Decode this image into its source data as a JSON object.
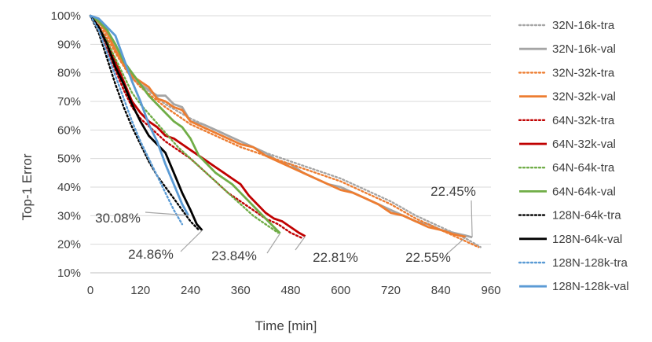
{
  "chart_data": {
    "type": "line",
    "xlabel": "Time [min]",
    "ylabel": "Top-1 Error",
    "xlim": [
      0,
      960
    ],
    "ylim": [
      10,
      100
    ],
    "xticks": [
      0,
      120,
      240,
      360,
      480,
      600,
      720,
      840,
      960
    ],
    "yticks": [
      10,
      20,
      30,
      40,
      50,
      60,
      70,
      80,
      90,
      100
    ],
    "ytick_suffix": "%",
    "grid": true,
    "legend_position": "right",
    "series": [
      {
        "name": "32N-16k-tra",
        "color": "#a5a5a5",
        "style": "dotted",
        "points": [
          [
            0,
            100
          ],
          [
            30,
            96
          ],
          [
            60,
            89
          ],
          [
            90,
            82
          ],
          [
            120,
            76
          ],
          [
            180,
            69
          ],
          [
            240,
            64
          ],
          [
            300,
            60
          ],
          [
            360,
            56
          ],
          [
            420,
            52
          ],
          [
            480,
            49
          ],
          [
            540,
            46
          ],
          [
            600,
            43
          ],
          [
            660,
            39
          ],
          [
            720,
            35
          ],
          [
            780,
            30
          ],
          [
            840,
            26
          ],
          [
            900,
            22
          ],
          [
            935,
            19
          ]
        ]
      },
      {
        "name": "32N-16k-val",
        "color": "#a5a5a5",
        "style": "solid",
        "points": [
          [
            0,
            100
          ],
          [
            20,
            98
          ],
          [
            40,
            95
          ],
          [
            60,
            89
          ],
          [
            80,
            83
          ],
          [
            100,
            78
          ],
          [
            120,
            76
          ],
          [
            140,
            74
          ],
          [
            160,
            72
          ],
          [
            180,
            72
          ],
          [
            200,
            69
          ],
          [
            220,
            68
          ],
          [
            240,
            63
          ],
          [
            270,
            62
          ],
          [
            300,
            60
          ],
          [
            330,
            58
          ],
          [
            360,
            56
          ],
          [
            390,
            54
          ],
          [
            420,
            52
          ],
          [
            450,
            49
          ],
          [
            480,
            48
          ],
          [
            510,
            45
          ],
          [
            540,
            43
          ],
          [
            570,
            41
          ],
          [
            600,
            40
          ],
          [
            630,
            38
          ],
          [
            660,
            36
          ],
          [
            690,
            34
          ],
          [
            720,
            32
          ],
          [
            750,
            30
          ],
          [
            780,
            28
          ],
          [
            810,
            27
          ],
          [
            840,
            25
          ],
          [
            870,
            24
          ],
          [
            900,
            23
          ],
          [
            915,
            22.45
          ]
        ]
      },
      {
        "name": "32N-32k-tra",
        "color": "#ed7d31",
        "style": "dotted",
        "points": [
          [
            0,
            100
          ],
          [
            30,
            95
          ],
          [
            60,
            87
          ],
          [
            90,
            80
          ],
          [
            120,
            75
          ],
          [
            180,
            68
          ],
          [
            240,
            62
          ],
          [
            300,
            58
          ],
          [
            360,
            54
          ],
          [
            420,
            51
          ],
          [
            480,
            48
          ],
          [
            540,
            45
          ],
          [
            600,
            42
          ],
          [
            660,
            38
          ],
          [
            720,
            34
          ],
          [
            780,
            29
          ],
          [
            840,
            25
          ],
          [
            900,
            21
          ],
          [
            930,
            19
          ]
        ]
      },
      {
        "name": "32N-32k-val",
        "color": "#ed7d31",
        "style": "solid",
        "points": [
          [
            0,
            100
          ],
          [
            20,
            98
          ],
          [
            40,
            94
          ],
          [
            60,
            88
          ],
          [
            80,
            83
          ],
          [
            100,
            79
          ],
          [
            120,
            77
          ],
          [
            140,
            75
          ],
          [
            160,
            71
          ],
          [
            180,
            70
          ],
          [
            200,
            68
          ],
          [
            220,
            67
          ],
          [
            240,
            63
          ],
          [
            270,
            61
          ],
          [
            300,
            59
          ],
          [
            330,
            57
          ],
          [
            360,
            55
          ],
          [
            390,
            54
          ],
          [
            420,
            51
          ],
          [
            450,
            49
          ],
          [
            480,
            47
          ],
          [
            510,
            45
          ],
          [
            540,
            43
          ],
          [
            570,
            41
          ],
          [
            600,
            39
          ],
          [
            630,
            38
          ],
          [
            660,
            36
          ],
          [
            690,
            34
          ],
          [
            720,
            31
          ],
          [
            750,
            30
          ],
          [
            780,
            28
          ],
          [
            810,
            26
          ],
          [
            840,
            25
          ],
          [
            870,
            23.5
          ],
          [
            900,
            22.55
          ]
        ]
      },
      {
        "name": "64N-32k-tra",
        "color": "#c00000",
        "style": "dotted",
        "points": [
          [
            0,
            100
          ],
          [
            20,
            95
          ],
          [
            40,
            88
          ],
          [
            60,
            81
          ],
          [
            80,
            74
          ],
          [
            100,
            68
          ],
          [
            120,
            64
          ],
          [
            150,
            60
          ],
          [
            180,
            56
          ],
          [
            210,
            53
          ],
          [
            240,
            50
          ],
          [
            270,
            46
          ],
          [
            300,
            42
          ],
          [
            330,
            38
          ],
          [
            360,
            35
          ],
          [
            390,
            32
          ],
          [
            420,
            29
          ],
          [
            450,
            27
          ],
          [
            480,
            24
          ],
          [
            510,
            22
          ]
        ]
      },
      {
        "name": "64N-32k-val",
        "color": "#c00000",
        "style": "solid",
        "points": [
          [
            0,
            100
          ],
          [
            20,
            96
          ],
          [
            40,
            91
          ],
          [
            60,
            84
          ],
          [
            80,
            77
          ],
          [
            100,
            70
          ],
          [
            120,
            66
          ],
          [
            140,
            63
          ],
          [
            160,
            61
          ],
          [
            180,
            58
          ],
          [
            200,
            57
          ],
          [
            220,
            55
          ],
          [
            240,
            53
          ],
          [
            260,
            51
          ],
          [
            280,
            49
          ],
          [
            300,
            47
          ],
          [
            320,
            45
          ],
          [
            340,
            43
          ],
          [
            360,
            41
          ],
          [
            380,
            37
          ],
          [
            400,
            34
          ],
          [
            420,
            31
          ],
          [
            440,
            29
          ],
          [
            460,
            28
          ],
          [
            480,
            26
          ],
          [
            500,
            24
          ],
          [
            515,
            22.81
          ]
        ]
      },
      {
        "name": "64N-64k-tra",
        "color": "#70ad47",
        "style": "dotted",
        "points": [
          [
            0,
            100
          ],
          [
            20,
            96
          ],
          [
            40,
            91
          ],
          [
            60,
            85
          ],
          [
            80,
            79
          ],
          [
            100,
            73
          ],
          [
            120,
            69
          ],
          [
            150,
            64
          ],
          [
            180,
            59
          ],
          [
            210,
            54
          ],
          [
            240,
            50
          ],
          [
            270,
            46
          ],
          [
            300,
            42
          ],
          [
            330,
            38
          ],
          [
            360,
            34
          ],
          [
            390,
            30
          ],
          [
            420,
            27
          ],
          [
            450,
            24
          ]
        ]
      },
      {
        "name": "64N-64k-val",
        "color": "#70ad47",
        "style": "solid",
        "points": [
          [
            0,
            100
          ],
          [
            20,
            98
          ],
          [
            40,
            95
          ],
          [
            60,
            90
          ],
          [
            80,
            84
          ],
          [
            100,
            80
          ],
          [
            120,
            76
          ],
          [
            140,
            72
          ],
          [
            160,
            69
          ],
          [
            180,
            66
          ],
          [
            200,
            63
          ],
          [
            220,
            61
          ],
          [
            240,
            57
          ],
          [
            260,
            51
          ],
          [
            280,
            48
          ],
          [
            300,
            45
          ],
          [
            320,
            43
          ],
          [
            340,
            41
          ],
          [
            360,
            38
          ],
          [
            380,
            35
          ],
          [
            400,
            32
          ],
          [
            420,
            29
          ],
          [
            440,
            26
          ],
          [
            455,
            23.84
          ]
        ]
      },
      {
        "name": "128N-64k-tra",
        "color": "#000000",
        "style": "dotted",
        "points": [
          [
            0,
            100
          ],
          [
            20,
            94
          ],
          [
            40,
            85
          ],
          [
            60,
            76
          ],
          [
            80,
            68
          ],
          [
            100,
            61
          ],
          [
            120,
            55
          ],
          [
            140,
            49
          ],
          [
            160,
            44
          ],
          [
            180,
            40
          ],
          [
            200,
            36
          ],
          [
            220,
            32
          ],
          [
            240,
            28
          ],
          [
            260,
            25
          ]
        ]
      },
      {
        "name": "128N-64k-val",
        "color": "#000000",
        "style": "solid",
        "points": [
          [
            0,
            100
          ],
          [
            20,
            96
          ],
          [
            40,
            90
          ],
          [
            60,
            82
          ],
          [
            80,
            76
          ],
          [
            100,
            69
          ],
          [
            120,
            63
          ],
          [
            140,
            58
          ],
          [
            160,
            55
          ],
          [
            180,
            52
          ],
          [
            200,
            45
          ],
          [
            220,
            38
          ],
          [
            240,
            32
          ],
          [
            255,
            27
          ],
          [
            268,
            24.86
          ]
        ]
      },
      {
        "name": "128N-128k-tra",
        "color": "#5b9bd5",
        "style": "dotted",
        "points": [
          [
            0,
            100
          ],
          [
            20,
            95
          ],
          [
            40,
            87
          ],
          [
            60,
            79
          ],
          [
            80,
            71
          ],
          [
            100,
            63
          ],
          [
            120,
            56
          ],
          [
            140,
            50
          ],
          [
            160,
            44
          ],
          [
            180,
            38
          ],
          [
            200,
            32
          ],
          [
            220,
            27
          ]
        ]
      },
      {
        "name": "128N-128k-val",
        "color": "#5b9bd5",
        "style": "solid",
        "points": [
          [
            0,
            100
          ],
          [
            20,
            99
          ],
          [
            40,
            96
          ],
          [
            60,
            93
          ],
          [
            80,
            85
          ],
          [
            100,
            77
          ],
          [
            120,
            70
          ],
          [
            140,
            62
          ],
          [
            160,
            56
          ],
          [
            180,
            48
          ],
          [
            200,
            41
          ],
          [
            220,
            34
          ],
          [
            235,
            30.08
          ]
        ]
      }
    ],
    "annotations": [
      {
        "text": "22.45%",
        "series": "32N-16k-val"
      },
      {
        "text": "22.55%",
        "series": "32N-32k-val"
      },
      {
        "text": "22.81%",
        "series": "64N-32k-val"
      },
      {
        "text": "23.84%",
        "series": "64N-64k-val"
      },
      {
        "text": "24.86%",
        "series": "128N-64k-val"
      },
      {
        "text": "30.08%",
        "series": "128N-128k-val"
      }
    ]
  }
}
